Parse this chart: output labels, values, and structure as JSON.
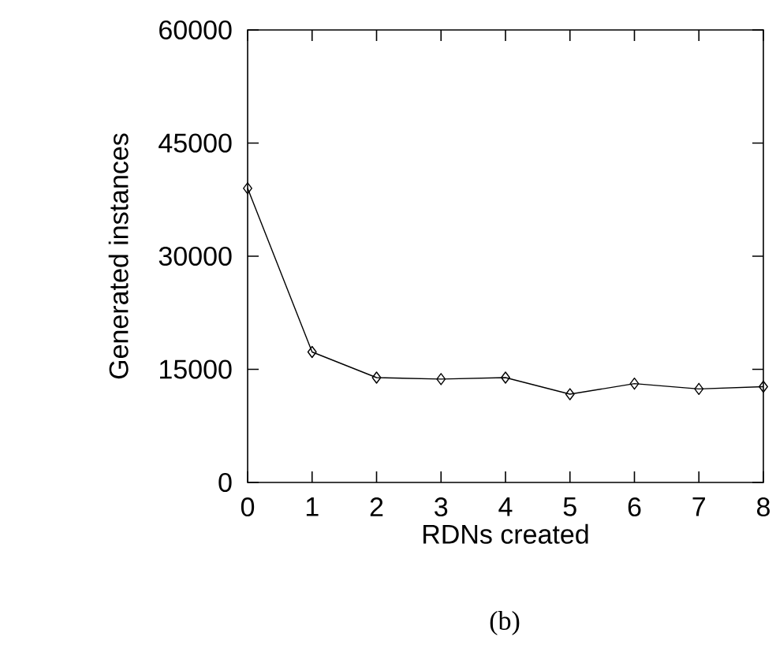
{
  "chart_data": {
    "type": "line",
    "xlabel": "RDNs created",
    "ylabel": "Generated instances",
    "annotations": [
      "(b)"
    ],
    "x": [
      0,
      1,
      2,
      3,
      4,
      5,
      6,
      7,
      8
    ],
    "series": [
      {
        "color": "#000000",
        "values": [
          39000,
          17300,
          13900,
          13700,
          13900,
          11700,
          13100,
          12400,
          12700
        ]
      }
    ],
    "xlim": [
      0,
      8
    ],
    "xticks": [
      0,
      1,
      2,
      3,
      4,
      5,
      6,
      7,
      8
    ],
    "ylim": [
      0,
      60000
    ],
    "yticks": [
      0,
      15000,
      30000,
      45000,
      60000
    ],
    "marker": "diamond",
    "line_style": "solid",
    "grid": false
  }
}
